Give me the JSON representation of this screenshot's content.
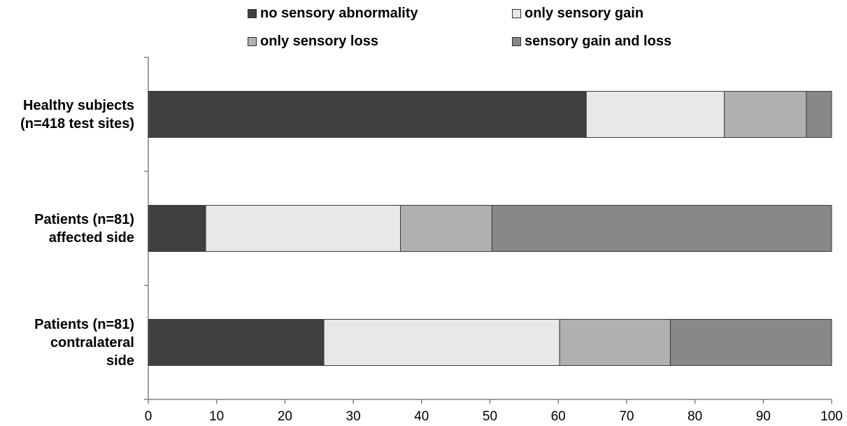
{
  "chart_data": {
    "type": "bar",
    "orientation": "horizontal",
    "stacked": true,
    "categories": [
      [
        "Healthy subjects",
        "(n=418 test sites)"
      ],
      [
        "Patients (n=81)",
        "affected side"
      ],
      [
        "Patients (n=81)",
        "contralateral",
        "side"
      ]
    ],
    "series": [
      {
        "name": "no sensory abnormality",
        "color": "#404040",
        "values": [
          64.1,
          8.4,
          25.7
        ]
      },
      {
        "name": "only sensory gain",
        "color": "#e8e8e8",
        "values": [
          20.2,
          28.5,
          34.5
        ]
      },
      {
        "name": "only sensory loss",
        "color": "#b0b0b0",
        "values": [
          12.0,
          13.4,
          16.2
        ]
      },
      {
        "name": "sensory gain and loss",
        "color": "#888888",
        "values": [
          3.7,
          49.7,
          23.6
        ]
      }
    ],
    "xlim": [
      0,
      100
    ],
    "xticks": [
      "0",
      "10",
      "20",
      "30",
      "40",
      "50",
      "60",
      "70",
      "80",
      "90",
      "100"
    ],
    "grid": false,
    "legend_position": "top"
  }
}
